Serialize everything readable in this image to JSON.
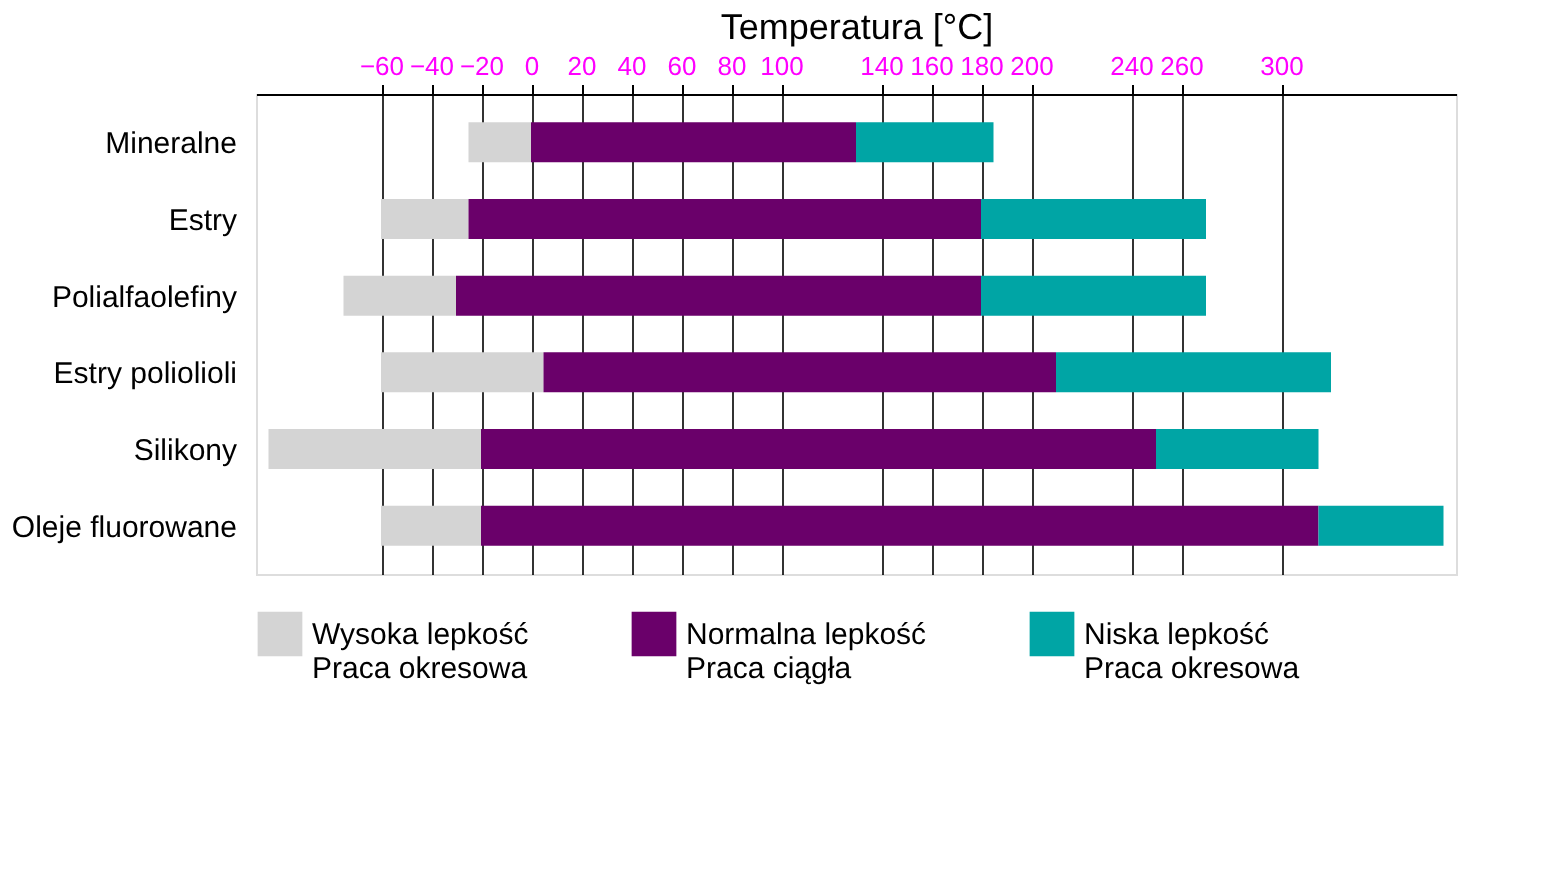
{
  "chart_data": {
    "type": "bar",
    "orientation": "horizontal",
    "xlabel": "Temperatura [°C]",
    "categories": [
      "Mineralne",
      "Estry",
      "Polialfaolefiny",
      "Estry poliolioli",
      "Silikony",
      "Oleje fluorowane"
    ],
    "series": [
      {
        "name": "Wysoka lepkość\nPraca okresowa",
        "color": "#d4d4d4",
        "base": [
          -25,
          -60,
          -75,
          -60,
          -105,
          -60
        ],
        "values": [
          25,
          35,
          45,
          65,
          85,
          40
        ]
      },
      {
        "name": "Normalna lepkość\nPraca ciągła",
        "color": "#6a006a",
        "base": [
          0,
          -25,
          -30,
          5,
          -20,
          -20
        ],
        "values": [
          130,
          205,
          210,
          205,
          270,
          335
        ]
      },
      {
        "name": "Niska lepkość\nPraca okresowa",
        "color": "#00a5a5",
        "base": [
          130,
          180,
          180,
          210,
          250,
          315
        ],
        "values": [
          55,
          90,
          90,
          110,
          65,
          50
        ]
      }
    ],
    "xlim": [
      -110,
      370
    ],
    "xticks": [
      -60,
      -40,
      -20,
      0,
      20,
      40,
      60,
      80,
      100,
      140,
      160,
      180,
      200,
      240,
      260,
      300
    ],
    "grid": "x",
    "legend": "bottom"
  }
}
